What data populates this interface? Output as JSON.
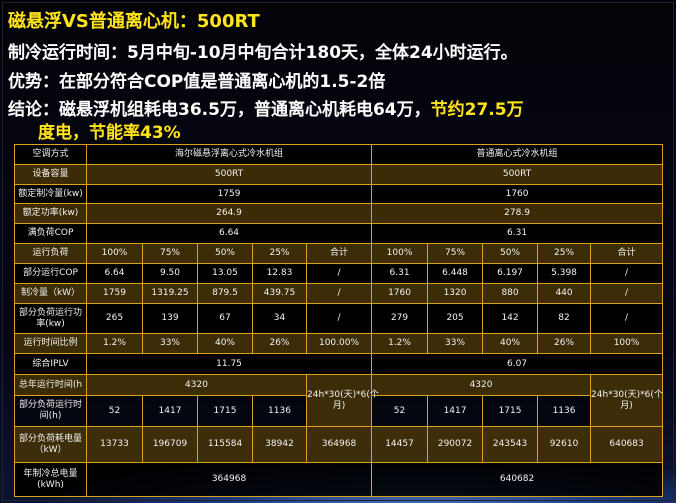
{
  "heading": {
    "title": "磁悬浮VS普通离心机：500RT",
    "line2": "制冷运行时间：5月中旬-10月中旬合计180天，全体24小时运行。",
    "line3": "优势：在部分符合COP值是普通离心机的1.5-2倍",
    "line4_white": "结论：磁悬浮机组耗电36.5万，普通离心机耗电64万，",
    "line4_yellow": "节约27.5万",
    "line5": "度电，节能率43%"
  },
  "colors": {
    "accent": "#ffe41a",
    "grid": "#d9a21a"
  },
  "table": {
    "header": [
      "空调方式",
      "海尔磁悬浮离心式冷水机组",
      "普通离心式冷水机组"
    ],
    "rows": [
      [
        "设备容量",
        "500RT",
        "500RT"
      ],
      [
        "额定制冷量(kw)",
        "1759",
        "1760"
      ],
      [
        "额定功率(kw)",
        "264.9",
        "278.9"
      ],
      [
        "满负荷COP",
        "6.64",
        "6.31"
      ],
      [
        "运行负荷",
        "100%",
        "75%",
        "50%",
        "25%",
        "合计",
        "100%",
        "75%",
        "50%",
        "25%",
        "合计"
      ],
      [
        "部分运行COP",
        "6.64",
        "9.50",
        "13.05",
        "12.83",
        "/",
        "6.31",
        "6.448",
        "6.197",
        "5.398",
        "/"
      ],
      [
        "制冷量（kW）",
        "1759",
        "1319.25",
        "879.5",
        "439.75",
        "/",
        "1760",
        "1320",
        "880",
        "440",
        "/"
      ],
      [
        "部分负荷运行功率(kw)",
        "265",
        "139",
        "67",
        "34",
        "/",
        "279",
        "205",
        "142",
        "82",
        "/"
      ],
      [
        "运行时间比例",
        "1.2%",
        "33%",
        "40%",
        "26%",
        "100.00%",
        "1.2%",
        "33%",
        "40%",
        "26%",
        "100%"
      ],
      [
        "综合IPLV",
        "11.75",
        "6.07"
      ],
      [
        "总年运行时间(h",
        "4320",
        "24h*30(天)*6(个月)",
        "4320",
        "24h*30(天)*6(个月)"
      ],
      [
        "部分负荷运行时间(h)",
        "52",
        "1417",
        "1715",
        "1136",
        "52",
        "1417",
        "1715",
        "1136"
      ],
      [
        "部分负荷耗电量（kW）",
        "13733",
        "196709",
        "115584",
        "38942",
        "364968",
        "14457",
        "290072",
        "243543",
        "92610",
        "640683"
      ],
      [
        "年制冷总电量(kWh)",
        "364968",
        "640682"
      ]
    ]
  }
}
